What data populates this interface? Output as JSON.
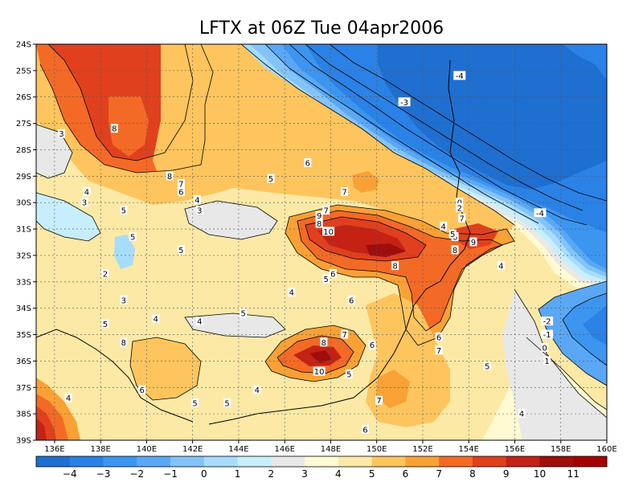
{
  "chart_data": {
    "type": "contour",
    "title": "LFTX at 06Z Tue 04apr2006",
    "x_ticks": [
      "136E",
      "138E",
      "140E",
      "142E",
      "144E",
      "146E",
      "148E",
      "150E",
      "152E",
      "154E",
      "156E",
      "158E",
      "160E"
    ],
    "x_values": [
      136,
      138,
      140,
      142,
      144,
      146,
      148,
      150,
      152,
      154,
      156,
      158,
      160
    ],
    "y_ticks": [
      "24S",
      "25S",
      "26S",
      "27S",
      "28S",
      "29S",
      "30S",
      "31S",
      "32S",
      "33S",
      "34S",
      "35S",
      "36S",
      "37S",
      "38S",
      "39S"
    ],
    "y_values": [
      -24,
      -25,
      -26,
      -27,
      -28,
      -29,
      -30,
      -31,
      -32,
      -33,
      -34,
      -35,
      -36,
      -37,
      -38,
      -39
    ],
    "xlim": [
      135.2,
      160
    ],
    "ylim": [
      -39,
      -24
    ],
    "grid": true,
    "colorbar": {
      "levels": [
        -4,
        -3,
        -2,
        -1,
        0,
        1,
        2,
        3,
        4,
        5,
        6,
        7,
        8,
        9,
        10,
        11
      ],
      "labels": [
        "−4",
        "−3",
        "−2",
        "−1",
        "0",
        "1",
        "2",
        "3",
        "4",
        "5",
        "6",
        "7",
        "8",
        "9",
        "10",
        "11"
      ],
      "colors": [
        "#1e6fd0",
        "#2a82e6",
        "#3c96f0",
        "#5aa8f5",
        "#82c4fa",
        "#a7dcfc",
        "#c7eefc",
        "#e8e8e8",
        "#fffad2",
        "#fde9a6",
        "#fec55e",
        "#f9a135",
        "#f36a26",
        "#e0401e",
        "#c42215",
        "#9e0e0c",
        "#a50000"
      ]
    },
    "contour_labels": [
      {
        "text": "-4",
        "lon": 153.6,
        "lat": -25.2
      },
      {
        "text": "-3",
        "lon": 151.2,
        "lat": -26.2
      },
      {
        "text": "3",
        "lon": 136.3,
        "lat": -27.4
      },
      {
        "text": "8",
        "lon": 138.6,
        "lat": -27.2
      },
      {
        "text": "8",
        "lon": 141.0,
        "lat": -29.0
      },
      {
        "text": "7",
        "lon": 141.5,
        "lat": -29.3
      },
      {
        "text": "6",
        "lon": 141.5,
        "lat": -29.6
      },
      {
        "text": "6",
        "lon": 147.0,
        "lat": -28.5
      },
      {
        "text": "5",
        "lon": 145.4,
        "lat": -29.1
      },
      {
        "text": "7",
        "lon": 148.6,
        "lat": -29.6
      },
      {
        "text": "4",
        "lon": 137.4,
        "lat": -29.6
      },
      {
        "text": "3",
        "lon": 137.3,
        "lat": -30.0
      },
      {
        "text": "5",
        "lon": 139.0,
        "lat": -30.3
      },
      {
        "text": "4",
        "lon": 142.2,
        "lat": -29.9
      },
      {
        "text": "3",
        "lon": 142.3,
        "lat": -30.3
      },
      {
        "text": "5",
        "lon": 139.4,
        "lat": -31.3
      },
      {
        "text": "7",
        "lon": 147.8,
        "lat": -30.3
      },
      {
        "text": "9",
        "lon": 147.5,
        "lat": -30.5
      },
      {
        "text": "8",
        "lon": 147.5,
        "lat": -30.8
      },
      {
        "text": "10",
        "lon": 147.9,
        "lat": -31.1
      },
      {
        "text": "4",
        "lon": 152.9,
        "lat": -30.9
      },
      {
        "text": "6",
        "lon": 153.4,
        "lat": -31.3
      },
      {
        "text": "5",
        "lon": 153.3,
        "lat": -31.2
      },
      {
        "text": "8",
        "lon": 153.4,
        "lat": -31.8
      },
      {
        "text": "9",
        "lon": 154.2,
        "lat": -31.5
      },
      {
        "text": "0",
        "lon": 153.6,
        "lat": -30.0
      },
      {
        "text": "2",
        "lon": 153.6,
        "lat": -30.2
      },
      {
        "text": "7",
        "lon": 153.7,
        "lat": -30.6
      },
      {
        "text": "-4",
        "lon": 157.1,
        "lat": -30.4
      },
      {
        "text": "8",
        "lon": 150.8,
        "lat": -32.4
      },
      {
        "text": "6",
        "lon": 148.1,
        "lat": -32.7
      },
      {
        "text": "5",
        "lon": 147.8,
        "lat": -32.9
      },
      {
        "text": "5",
        "lon": 141.5,
        "lat": -31.8
      },
      {
        "text": "2",
        "lon": 138.2,
        "lat": -32.7
      },
      {
        "text": "4",
        "lon": 146.3,
        "lat": -33.4
      },
      {
        "text": "3",
        "lon": 139.0,
        "lat": -33.7
      },
      {
        "text": "4",
        "lon": 140.4,
        "lat": -34.4
      },
      {
        "text": "5",
        "lon": 138.2,
        "lat": -34.6
      },
      {
        "text": "4",
        "lon": 142.3,
        "lat": -34.5
      },
      {
        "text": "5",
        "lon": 144.2,
        "lat": -34.2
      },
      {
        "text": "6",
        "lon": 148.9,
        "lat": -33.7
      },
      {
        "text": "4",
        "lon": 155.4,
        "lat": -32.4
      },
      {
        "text": "-2",
        "lon": 157.4,
        "lat": -34.5
      },
      {
        "text": "-1",
        "lon": 157.4,
        "lat": -35.0
      },
      {
        "text": "0",
        "lon": 157.3,
        "lat": -35.5
      },
      {
        "text": "1",
        "lon": 157.4,
        "lat": -36.0
      },
      {
        "text": "8",
        "lon": 139.0,
        "lat": -35.3
      },
      {
        "text": "7",
        "lon": 148.6,
        "lat": -35.0
      },
      {
        "text": "8",
        "lon": 147.7,
        "lat": -35.3
      },
      {
        "text": "6",
        "lon": 149.8,
        "lat": -35.4
      },
      {
        "text": "6",
        "lon": 152.7,
        "lat": -35.1
      },
      {
        "text": "7",
        "lon": 152.7,
        "lat": -35.6
      },
      {
        "text": "10",
        "lon": 147.5,
        "lat": -36.4
      },
      {
        "text": "5",
        "lon": 148.8,
        "lat": -36.5
      },
      {
        "text": "5",
        "lon": 154.8,
        "lat": -36.2
      },
      {
        "text": "4",
        "lon": 144.8,
        "lat": -37.1
      },
      {
        "text": "6",
        "lon": 139.8,
        "lat": -37.1
      },
      {
        "text": "4",
        "lon": 136.6,
        "lat": -37.4
      },
      {
        "text": "5",
        "lon": 142.1,
        "lat": -37.6
      },
      {
        "text": "5",
        "lon": 143.5,
        "lat": -37.6
      },
      {
        "text": "7",
        "lon": 150.1,
        "lat": -37.5
      },
      {
        "text": "4",
        "lon": 156.3,
        "lat": -38.0
      },
      {
        "text": "6",
        "lon": 149.5,
        "lat": -38.6
      }
    ]
  }
}
